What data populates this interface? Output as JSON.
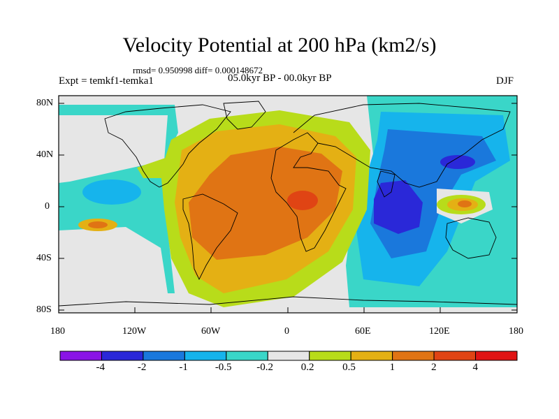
{
  "title": "Velocity Potential at 200 hPa (km2/s)",
  "stats": "rmsd= 0.950998 diff= 0.000148672",
  "experiment": "Expt = temkf1-temka1",
  "period": "05.0kyr BP - 00.0kyr BP",
  "season": "DJF",
  "axes": {
    "y_ticks": [
      "80N",
      "40N",
      "0",
      "40S",
      "80S"
    ],
    "x_ticks": [
      "180",
      "120W",
      "60W",
      "0",
      "60E",
      "120E",
      "180"
    ]
  },
  "colorbar": {
    "labels": [
      "-4",
      "-2",
      "-1",
      "-0.5",
      "-0.2",
      "0.2",
      "0.5",
      "1",
      "2",
      "4"
    ],
    "colors": [
      "#8a14e6",
      "#2a28d8",
      "#1a78dc",
      "#16b4ec",
      "#3ad6c8",
      "#e6e6e6",
      "#b8dc1a",
      "#e4b014",
      "#e07414",
      "#e04414",
      "#e01414"
    ]
  },
  "colors": {
    "land_outline": "#000000",
    "neutral": "#e6e6e6"
  }
}
